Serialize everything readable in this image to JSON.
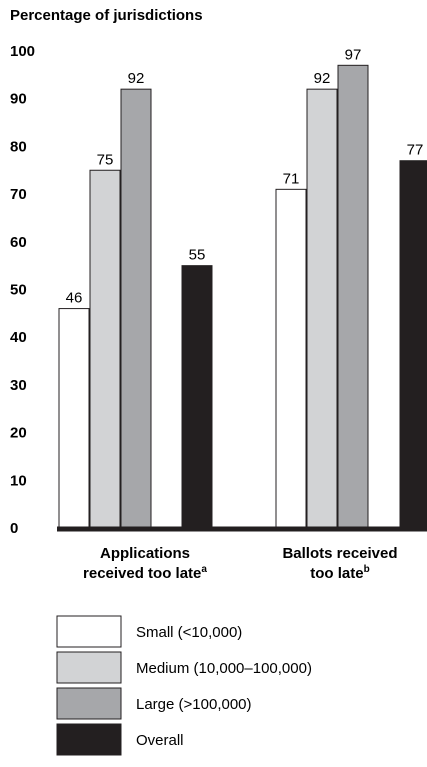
{
  "chart_data": {
    "type": "bar",
    "ylabel": "Percentage of jurisdictions",
    "ylim": [
      0,
      100
    ],
    "yticks": [
      0,
      10,
      20,
      30,
      40,
      50,
      60,
      70,
      80,
      90,
      100
    ],
    "categories": [
      {
        "lines": [
          "Applications",
          "received too late"
        ],
        "footnote": "a"
      },
      {
        "lines": [
          "Ballots received",
          "too late"
        ],
        "footnote": "b"
      }
    ],
    "series": [
      {
        "name": "Small (<10,000)",
        "color": "#ffffff",
        "values": [
          46,
          71
        ]
      },
      {
        "name": "Medium (10,000–100,000)",
        "color": "#d2d3d5",
        "values": [
          75,
          92
        ]
      },
      {
        "name": "Large (>100,000)",
        "color": "#a6a7aa",
        "values": [
          92,
          97
        ]
      },
      {
        "name": "Overall",
        "color": "#231f20",
        "values": [
          55,
          77
        ]
      }
    ],
    "grid": false,
    "legend_position": "bottom"
  }
}
